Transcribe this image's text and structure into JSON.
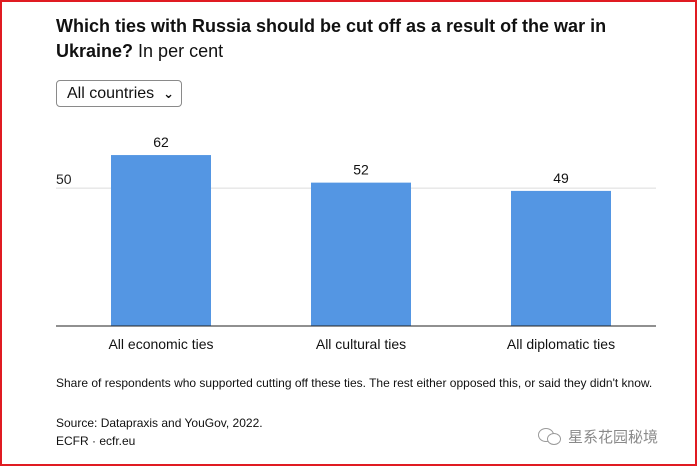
{
  "header": {
    "title_bold": "Which ties with Russia should be cut off as a result of the war in Ukraine?",
    "title_regular": "In per cent"
  },
  "filter": {
    "selected": "All countries"
  },
  "chart_data": {
    "type": "bar",
    "categories": [
      "All economic ties",
      "All cultural ties",
      "All diplomatic ties"
    ],
    "values": [
      62,
      52,
      49
    ],
    "ylim": [
      0,
      70
    ],
    "gridlines": [
      50
    ],
    "bar_color": "#5496e3",
    "data_labels": true,
    "legend": "none"
  },
  "footer": {
    "note": "Share of respondents who supported cutting off these ties. The rest either opposed this, or said they didn't know.",
    "source": "Source: Datapraxis and YouGov, 2022.",
    "credit": "ECFR · ecfr.eu"
  },
  "watermark": {
    "text": "星系花园秘境",
    "icon": "wechat-icon"
  },
  "colors": {
    "border": "#e01b22",
    "bar": "#5496e3"
  }
}
